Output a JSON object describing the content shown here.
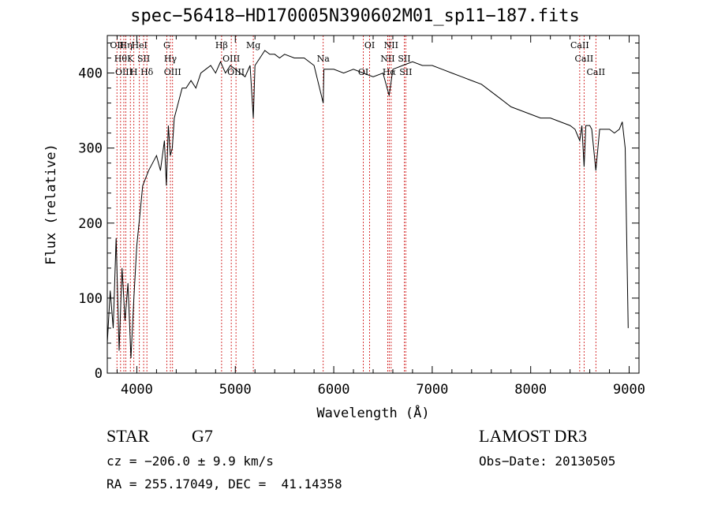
{
  "chart_data": {
    "type": "line",
    "title": "spec−56418−HD170005N390602M01_sp11−187.fits",
    "xlabel": "Wavelength (Å)",
    "ylabel": "Flux (relative)",
    "xlim": [
      3700,
      9100
    ],
    "ylim": [
      0,
      450
    ],
    "xticks": [
      4000,
      5000,
      6000,
      7000,
      8000,
      9000
    ],
    "yticks": [
      0,
      100,
      200,
      300,
      400
    ],
    "grid": false,
    "series": [
      {
        "x": [
          3700,
          3730,
          3760,
          3790,
          3820,
          3850,
          3880,
          3910,
          3940,
          3970,
          4000,
          4030,
          4060,
          4090,
          4120,
          4160,
          4200,
          4240,
          4280,
          4300,
          4320,
          4340,
          4360,
          4380,
          4420,
          4460,
          4500,
          4550,
          4600,
          4650,
          4700,
          4750,
          4800,
          4850,
          4900,
          4950,
          5000,
          5050,
          5100,
          5150,
          5183,
          5200,
          5250,
          5300,
          5350,
          5400,
          5450,
          5500,
          5600,
          5700,
          5800,
          5893,
          5900,
          6000,
          6100,
          6200,
          6300,
          6400,
          6500,
          6563,
          6600,
          6700,
          6800,
          6900,
          7000,
          7100,
          7200,
          7300,
          7400,
          7500,
          7600,
          7700,
          7800,
          7900,
          8000,
          8100,
          8200,
          8300,
          8400,
          8450,
          8498,
          8520,
          8542,
          8560,
          8600,
          8620,
          8662,
          8700,
          8800,
          8850,
          8900,
          8930,
          8960,
          8990
        ],
        "y": [
          40,
          110,
          60,
          180,
          30,
          140,
          70,
          120,
          20,
          100,
          170,
          210,
          250,
          260,
          270,
          280,
          290,
          270,
          310,
          250,
          330,
          290,
          300,
          340,
          360,
          380,
          380,
          390,
          380,
          400,
          405,
          410,
          400,
          415,
          400,
          410,
          405,
          400,
          395,
          410,
          340,
          410,
          420,
          430,
          425,
          425,
          420,
          425,
          420,
          420,
          410,
          360,
          405,
          405,
          400,
          405,
          400,
          395,
          400,
          370,
          405,
          410,
          415,
          410,
          410,
          405,
          400,
          395,
          390,
          385,
          375,
          365,
          355,
          350,
          345,
          340,
          340,
          335,
          330,
          325,
          310,
          330,
          275,
          330,
          330,
          325,
          270,
          325,
          325,
          320,
          325,
          335,
          300,
          60
        ]
      }
    ],
    "lines": [
      {
        "wavelength": 3798,
        "label": "OII"
      },
      {
        "wavelength": 3835,
        "label": "Hθ"
      },
      {
        "wavelength": 3868,
        "label": "OIII"
      },
      {
        "wavelength": 3889,
        "label": "Hη"
      },
      {
        "wavelength": 3934,
        "label": "K"
      },
      {
        "wavelength": 3970,
        "label": "H"
      },
      {
        "wavelength": 4026,
        "label": "HeI"
      },
      {
        "wavelength": 4069,
        "label": "SII"
      },
      {
        "wavelength": 4102,
        "label": "Hδ"
      },
      {
        "wavelength": 4304,
        "label": "G"
      },
      {
        "wavelength": 4341,
        "label": "Hγ"
      },
      {
        "wavelength": 4363,
        "label": "OIII"
      },
      {
        "wavelength": 4861,
        "label": "Hβ"
      },
      {
        "wavelength": 4959,
        "label": "OIII"
      },
      {
        "wavelength": 5007,
        "label": "OIII"
      },
      {
        "wavelength": 5183,
        "label": "Mg"
      },
      {
        "wavelength": 5893,
        "label": "Na"
      },
      {
        "wavelength": 6300,
        "label": "OI"
      },
      {
        "wavelength": 6364,
        "label": "OI"
      },
      {
        "wavelength": 6548,
        "label": "NII"
      },
      {
        "wavelength": 6563,
        "label": "Hα"
      },
      {
        "wavelength": 6583,
        "label": "NII"
      },
      {
        "wavelength": 6716,
        "label": "SII"
      },
      {
        "wavelength": 6731,
        "label": "SII"
      },
      {
        "wavelength": 8498,
        "label": "CaII"
      },
      {
        "wavelength": 8542,
        "label": "CaII"
      },
      {
        "wavelength": 8662,
        "label": "CaII"
      }
    ]
  },
  "info": {
    "object_class": "STAR",
    "subclass": "G7",
    "survey": "LAMOST DR3",
    "redshift": "cz = −206.0 ± 9.9 km/s",
    "obs_date": "Obs−Date: 20130505",
    "coords": "RA = 255.17049, DEC =  41.14358"
  },
  "colors": {
    "spectrum": "#000000",
    "line_markers": "#cc0000",
    "background": "#ffffff"
  }
}
